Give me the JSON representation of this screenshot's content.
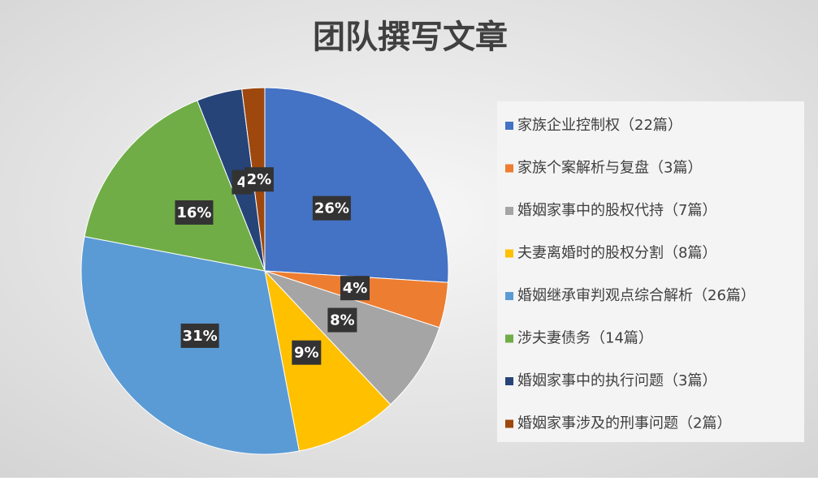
{
  "chart_data": {
    "type": "pie",
    "title": "团队撰写文章",
    "categories": [
      "家族企业控制权（22篇）",
      "家族个案解析与复盘（3篇）",
      "婚姻家事中的股权代持（7篇）",
      "夫妻离婚时的股权分割（8篇）",
      "婚姻继承审判观点综合解析（26篇）",
      "涉夫妻债务（14篇）",
      "婚姻家事中的执行问题（3篇）",
      "婚姻家事涉及的刑事问题（2篇）"
    ],
    "values": [
      26,
      4,
      8,
      9,
      31,
      16,
      4,
      2
    ],
    "value_labels": [
      "26%",
      "4%",
      "8%",
      "9%",
      "31%",
      "16%",
      "4",
      "2%"
    ],
    "colors": [
      "#4472c4",
      "#ed7d31",
      "#a5a5a5",
      "#ffc000",
      "#5b9bd5",
      "#70ad47",
      "#264478",
      "#9e480e"
    ],
    "legend": "right"
  }
}
